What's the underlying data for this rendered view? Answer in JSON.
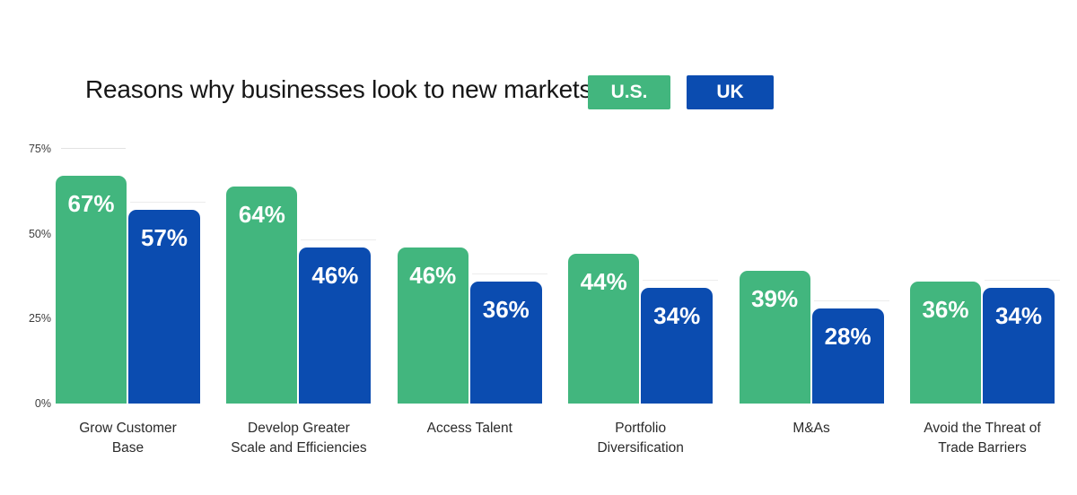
{
  "title": "Reasons why businesses look to new markets",
  "colors": {
    "us_green": "#42B67E",
    "uk_blue": "#0B4CB0",
    "value_text": "#ffffff",
    "title_text": "#161616",
    "axis_text": "#3d3d3d",
    "gridline": "#e3e3e3"
  },
  "legend": [
    {
      "id": "us",
      "label": "U.S.",
      "color": "#42B67E"
    },
    {
      "id": "uk",
      "label": "UK",
      "color": "#0B4CB0"
    }
  ],
  "y_axis": {
    "ticks": [
      {
        "label": "75%",
        "value": 75
      },
      {
        "label": "50%",
        "value": 50
      },
      {
        "label": "25%",
        "value": 25
      },
      {
        "label": "0%",
        "value": 0
      }
    ]
  },
  "chart_data": {
    "type": "bar",
    "title": "Reasons why businesses look to new markets",
    "categories": [
      "Grow Customer Base",
      "Develop Greater Scale and Efficiencies",
      "Access Talent",
      "Portfolio Diversification",
      "M&As",
      "Avoid the Threat of Trade Barriers"
    ],
    "category_label_lines": [
      [
        "Grow Customer",
        "Base"
      ],
      [
        "Develop Greater",
        "Scale and Efficiencies"
      ],
      [
        "Access Talent"
      ],
      [
        "Portfolio",
        "Diversification"
      ],
      [
        "M&As"
      ],
      [
        "Avoid the Threat of",
        "Trade Barriers"
      ]
    ],
    "series": [
      {
        "name": "U.S.",
        "color": "#42B67E",
        "values": [
          67,
          64,
          46,
          44,
          39,
          36
        ]
      },
      {
        "name": "UK",
        "color": "#0B4CB0",
        "values": [
          57,
          46,
          36,
          34,
          28,
          34
        ]
      }
    ],
    "value_label_suffix": "%",
    "xlabel": "",
    "ylabel": "",
    "ylim": [
      0,
      75
    ],
    "grid": "minimal",
    "legend_position": "top"
  }
}
